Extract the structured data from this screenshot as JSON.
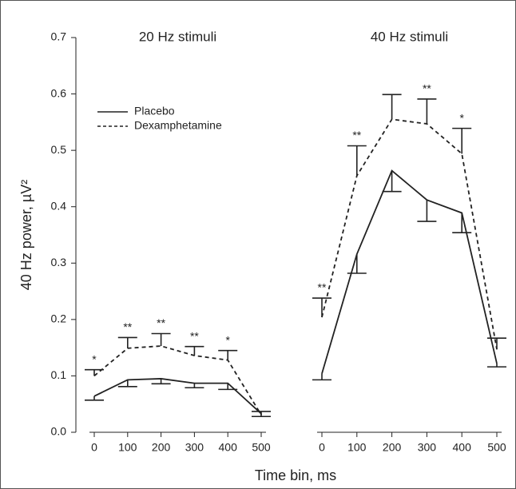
{
  "figure": {
    "y_label": "40 Hz power, µV²",
    "x_label": "Time bin, ms"
  },
  "chart_data": [
    {
      "type": "line",
      "title": "20 Hz stimuli",
      "x": [
        0,
        100,
        200,
        300,
        400,
        500
      ],
      "xlim": [
        0,
        500
      ],
      "xticks": [
        0,
        100,
        200,
        300,
        400,
        500
      ],
      "ylim": [
        0,
        0.7
      ],
      "yticks": [
        {
          "value": 0,
          "label": "0.0"
        },
        0.1,
        0.2,
        0.3,
        0.4,
        0.5,
        0.6,
        0.7
      ],
      "legend": true,
      "series": [
        {
          "name": "Placebo",
          "color": "#222222",
          "dash": "solid",
          "error_direction": "down",
          "values": [
            0.064,
            0.093,
            0.095,
            0.087,
            0.087,
            0.033
          ],
          "errors": [
            0.007,
            0.012,
            0.009,
            0.008,
            0.011,
            0.005
          ]
        },
        {
          "name": "Dexamphetamine",
          "color": "#222222",
          "dash": "dashed",
          "error_direction": "up",
          "values": [
            0.1,
            0.149,
            0.153,
            0.136,
            0.128,
            0.031
          ],
          "errors": [
            0.011,
            0.019,
            0.022,
            0.016,
            0.017,
            0.006
          ]
        }
      ],
      "significance": [
        "*",
        "**",
        "**",
        "**",
        "*",
        null
      ]
    },
    {
      "type": "line",
      "title": "40 Hz stimuli",
      "x": [
        0,
        100,
        200,
        300,
        400,
        500
      ],
      "xlim": [
        0,
        500
      ],
      "xticks": [
        0,
        100,
        200,
        300,
        400,
        500
      ],
      "ylim": [
        0,
        0.7
      ],
      "legend": false,
      "series": [
        {
          "name": "Placebo",
          "color": "#222222",
          "dash": "solid",
          "error_direction": "down",
          "values": [
            0.104,
            0.316,
            0.464,
            0.412,
            0.389,
            0.122
          ],
          "errors": [
            0.011,
            0.034,
            0.037,
            0.038,
            0.035,
            0.006
          ]
        },
        {
          "name": "Dexamphetamine",
          "color": "#222222",
          "dash": "dashed",
          "error_direction": "up",
          "values": [
            0.204,
            0.455,
            0.555,
            0.547,
            0.494,
            0.147
          ],
          "errors": [
            0.034,
            0.053,
            0.044,
            0.044,
            0.045,
            0.02
          ]
        }
      ],
      "significance": [
        "**",
        "**",
        null,
        "**",
        "*",
        null
      ]
    }
  ]
}
